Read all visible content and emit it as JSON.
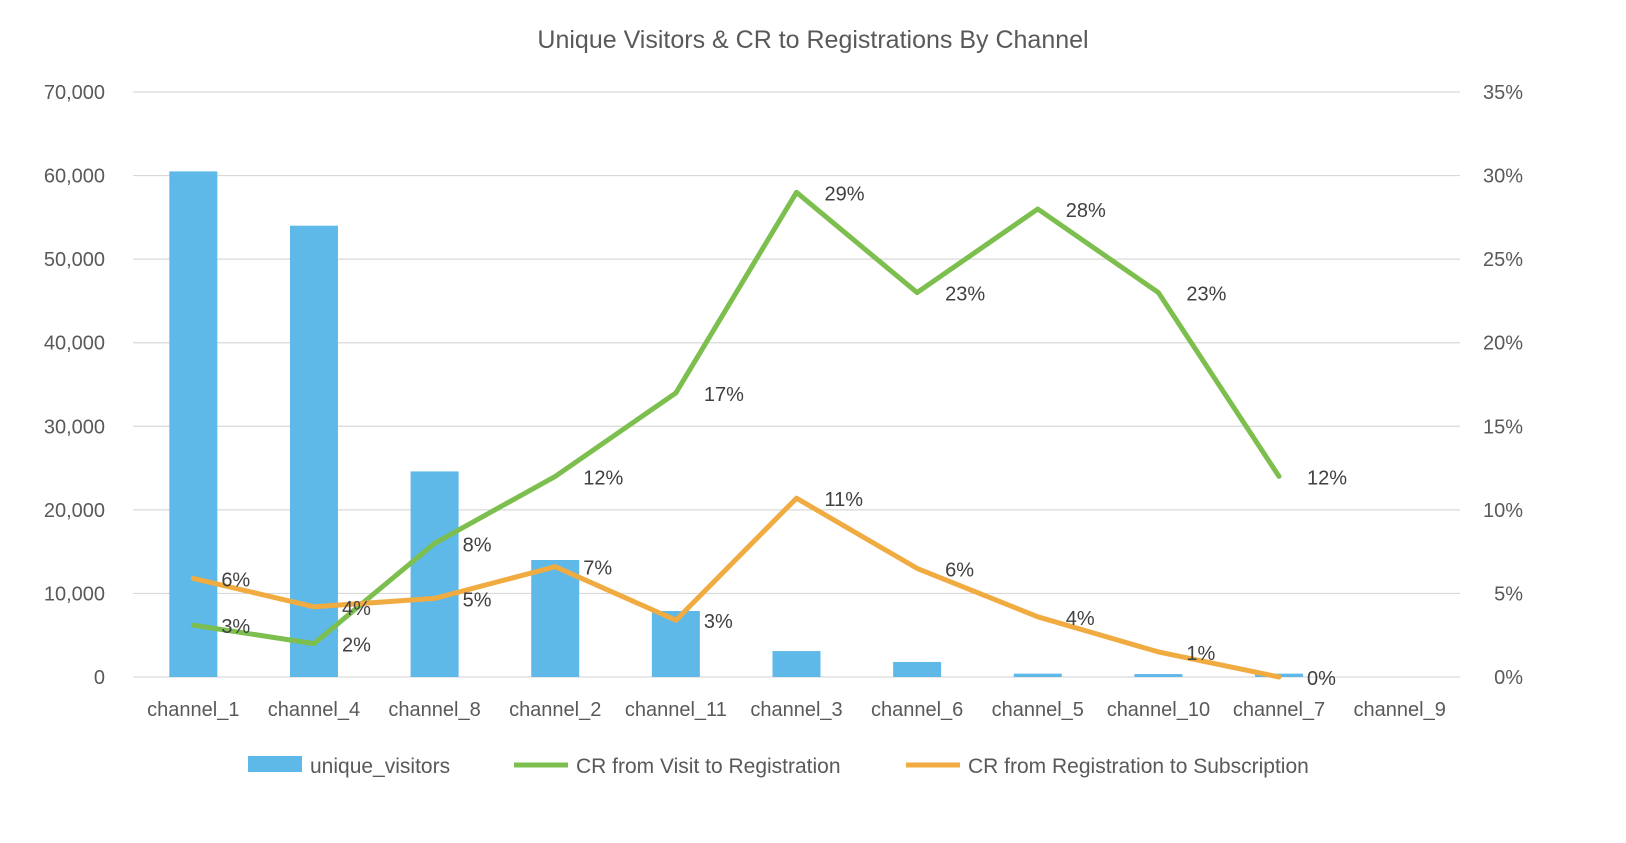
{
  "chart_data": {
    "type": "bar",
    "title": "Unique Visitors & CR to Registrations By Channel",
    "categories": [
      "channel_1",
      "channel_4",
      "channel_8",
      "channel_2",
      "channel_11",
      "channel_3",
      "channel_6",
      "channel_5",
      "channel_10",
      "channel_7",
      "channel_9"
    ],
    "y_left": {
      "min": 0,
      "max": 70000,
      "ticks": [
        "0",
        "10,000",
        "20,000",
        "30,000",
        "40,000",
        "50,000",
        "60,000",
        "70,000"
      ],
      "tick_values": [
        0,
        10000,
        20000,
        30000,
        40000,
        50000,
        60000,
        70000
      ]
    },
    "y_right": {
      "min": 0,
      "max": 0.35,
      "ticks": [
        "0%",
        "5%",
        "10%",
        "15%",
        "20%",
        "25%",
        "30%",
        "35%"
      ],
      "tick_values": [
        0,
        0.05,
        0.1,
        0.15,
        0.2,
        0.25,
        0.3,
        0.35
      ]
    },
    "grid": true,
    "legend_position": "bottom",
    "series": [
      {
        "name": "unique_visitors",
        "type": "bar",
        "axis": "left",
        "color": "#5eb8e8",
        "values": [
          60500,
          54000,
          24600,
          14000,
          7900,
          3100,
          1800,
          400,
          350,
          400,
          0
        ]
      },
      {
        "name": "CR from Visit to Registration",
        "type": "line",
        "axis": "right",
        "color": "#7dbf4e",
        "values": [
          0.031,
          0.02,
          0.08,
          0.12,
          0.17,
          0.29,
          0.23,
          0.28,
          0.23,
          0.12,
          null
        ],
        "labels": [
          "3%",
          "2%",
          "8%",
          "12%",
          "17%",
          "29%",
          "23%",
          "28%",
          "23%",
          "12%",
          null
        ]
      },
      {
        "name": "CR from Registration to Subscription",
        "type": "line",
        "axis": "right",
        "color": "#f0ab41",
        "values": [
          0.059,
          0.042,
          0.047,
          0.066,
          0.034,
          0.107,
          0.065,
          0.036,
          0.015,
          0.0,
          null
        ],
        "labels": [
          "6%",
          "4%",
          "5%",
          "7%",
          "3%",
          "11%",
          "6%",
          "4%",
          "1%",
          "0%",
          null
        ]
      }
    ]
  }
}
